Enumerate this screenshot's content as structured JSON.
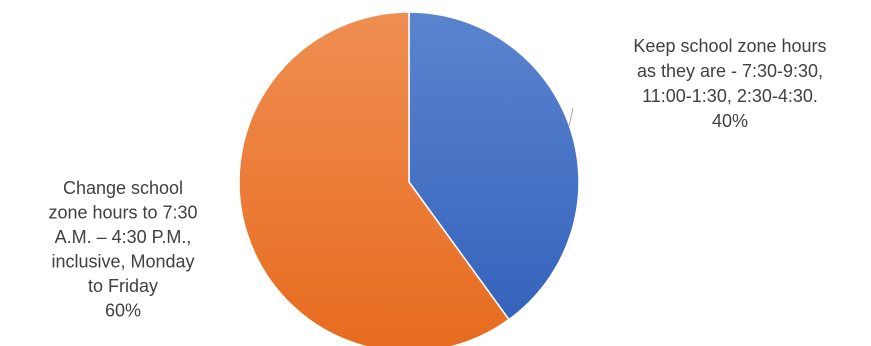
{
  "chart_data": {
    "type": "pie",
    "title": "",
    "slices": [
      {
        "label_lines": [
          "Keep school zone hours",
          "as they are - 7:30-9:30,",
          "11:00-1:30, 2:30-4:30."
        ],
        "value": 40,
        "value_label": "40%",
        "color": "#4472C4"
      },
      {
        "label_lines": [
          "Change school",
          "zone hours to 7:30",
          "A.M. – 4:30 P.M.,",
          "inclusive, Monday",
          "to Friday"
        ],
        "value": 60,
        "value_label": "60%",
        "color": "#ED7D31"
      }
    ],
    "start_angle_deg": 0,
    "direction": "clockwise",
    "legend": "none"
  }
}
